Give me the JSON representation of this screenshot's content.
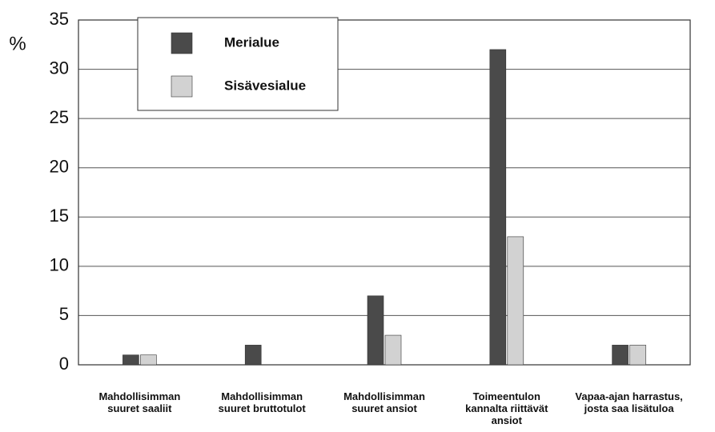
{
  "chart_data": {
    "type": "bar",
    "y_label": "%",
    "categories": [
      "Mahdollisimman\nsuuret saaliit",
      "Mahdollisimman\nsuuret bruttotulot",
      "Mahdollisimman\nsuuret ansiot",
      "Toimeentulon\nkannalta riittävät\nansiot",
      "Vapaa-ajan harrastus,\njosta saa lisätuloa"
    ],
    "series": [
      {
        "name": "Merialue",
        "color": "#4a4a4a",
        "values": [
          1,
          2,
          7,
          32,
          2
        ]
      },
      {
        "name": "Sisävesialue",
        "color": "#d2d2d2",
        "values": [
          1,
          0,
          3,
          13,
          2
        ]
      }
    ],
    "ylim": [
      0,
      35
    ],
    "yticks": [
      0,
      5,
      10,
      15,
      20,
      25,
      30,
      35
    ],
    "grid": true,
    "legend": "upper left"
  }
}
